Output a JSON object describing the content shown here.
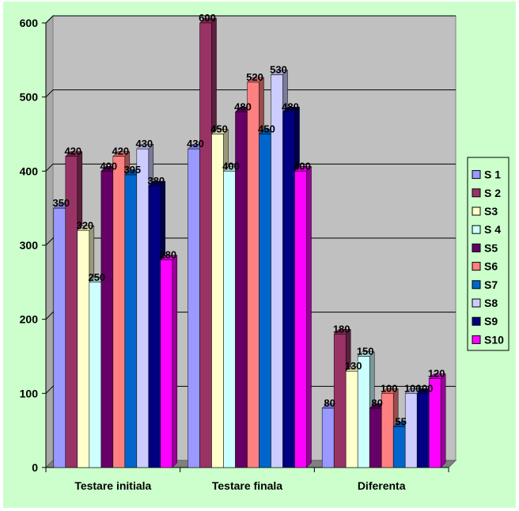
{
  "chart_data": {
    "type": "bar",
    "categories": [
      "Testare initiala",
      "Testare finala",
      "Diferenta"
    ],
    "series": [
      {
        "name": "S 1",
        "color": "#9999ff",
        "values": [
          350,
          430,
          80
        ]
      },
      {
        "name": "S 2",
        "color": "#993366",
        "values": [
          420,
          600,
          180
        ]
      },
      {
        "name": "S3",
        "color": "#ffffcc",
        "values": [
          320,
          450,
          130
        ]
      },
      {
        "name": "S 4",
        "color": "#ccffff",
        "values": [
          250,
          400,
          150
        ]
      },
      {
        "name": "S5",
        "color": "#660066",
        "values": [
          400,
          480,
          80
        ]
      },
      {
        "name": "S6",
        "color": "#ff8080",
        "values": [
          420,
          520,
          100
        ]
      },
      {
        "name": "S7",
        "color": "#0066cc",
        "values": [
          395,
          450,
          55
        ]
      },
      {
        "name": "S8",
        "color": "#ccccff",
        "values": [
          430,
          530,
          100
        ]
      },
      {
        "name": "S9",
        "color": "#000080",
        "values": [
          380,
          480,
          100
        ]
      },
      {
        "name": "S10",
        "color": "#ff00ff",
        "values": [
          280,
          400,
          120
        ]
      }
    ],
    "yticks": [
      "0",
      "100",
      "200",
      "300",
      "400",
      "500",
      "600"
    ],
    "ylim": [
      0,
      600
    ],
    "grid": true,
    "legend": "right",
    "colors": {
      "plot_bg": "#c0c0c0",
      "chart_bg": "#ccffcc"
    }
  }
}
